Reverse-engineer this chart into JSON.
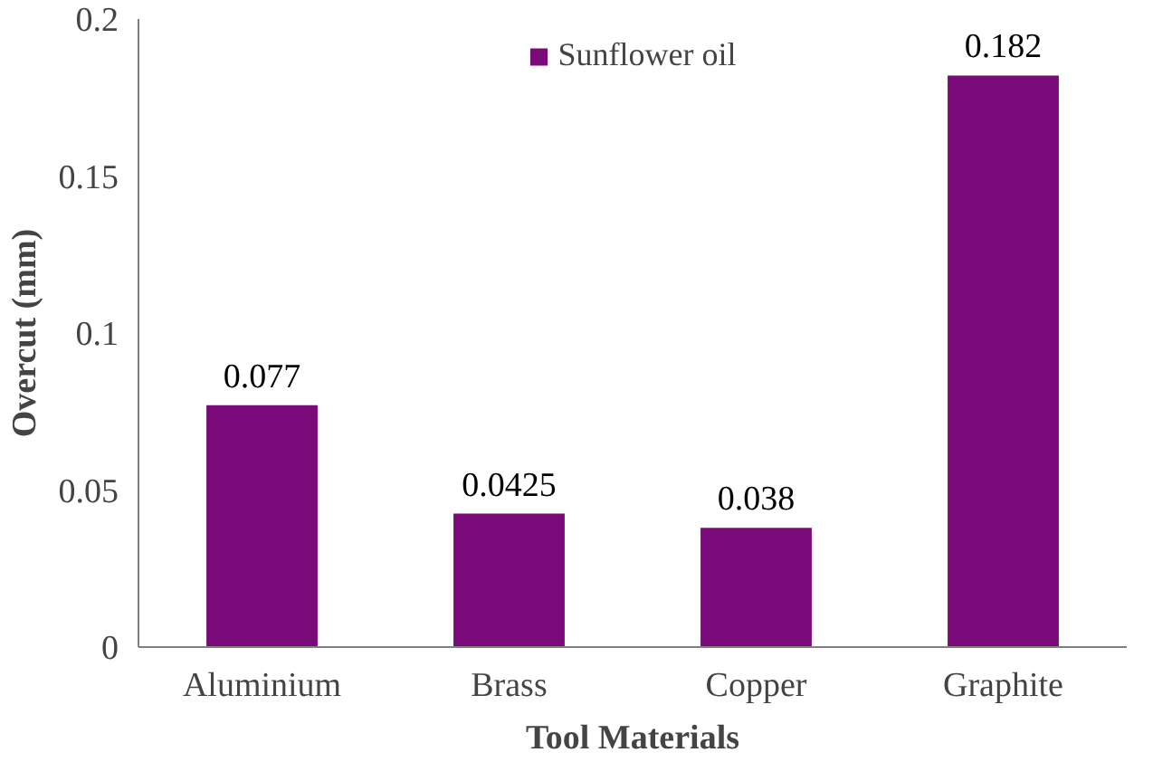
{
  "chart_data": {
    "type": "bar",
    "xlabel": "Tool Materials",
    "ylabel": "Overcut (mm)",
    "categories": [
      "Aluminium",
      "Brass",
      "Copper",
      "Graphite"
    ],
    "series": [
      {
        "name": "Sunflower oil",
        "color": "#7a0a7a",
        "values": [
          0.077,
          0.0425,
          0.038,
          0.182
        ]
      }
    ],
    "ylim": [
      0,
      0.2
    ],
    "yticks": [
      0,
      0.05,
      0.1,
      0.15,
      0.2
    ],
    "data_labels": true,
    "grid": false,
    "legend": "top"
  }
}
